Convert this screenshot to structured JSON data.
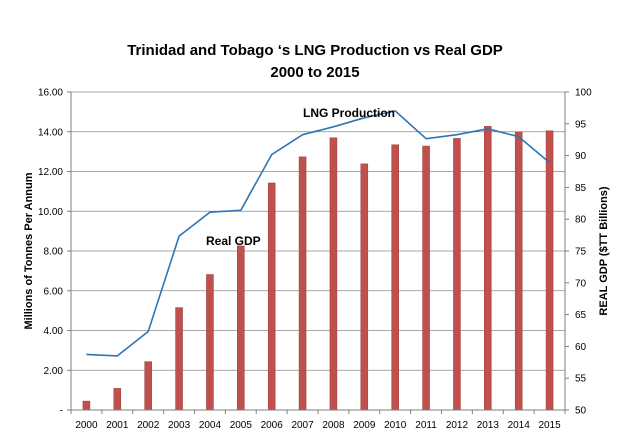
{
  "chart_data": {
    "type": "bar+line",
    "title_line1": "Trinidad and Tobago ‘s LNG Production vs Real GDP",
    "title_line2": "2000 to 2015",
    "categories": [
      "2000",
      "2001",
      "2002",
      "2003",
      "2004",
      "2005",
      "2006",
      "2007",
      "2008",
      "2009",
      "2010",
      "2011",
      "2012",
      "2013",
      "2014",
      "2015"
    ],
    "y_left": {
      "label": "Millions of Tonnes Per Annum",
      "ylim": [
        0,
        16
      ],
      "ticks": [
        0,
        2,
        4,
        6,
        8,
        10,
        12,
        14,
        16
      ],
      "tick_labels": [
        "-",
        "2.00",
        "4.00",
        "6.00",
        "8.00",
        "10.00",
        "12.00",
        "14.00",
        "16.00"
      ]
    },
    "y_right": {
      "label": "REAL GDP ($TT Billions)",
      "ylim": [
        50,
        100
      ],
      "ticks": [
        50,
        55,
        60,
        65,
        70,
        75,
        80,
        85,
        90,
        95,
        100
      ],
      "tick_labels": [
        "50",
        "55",
        "60",
        "65",
        "70",
        "75",
        "80",
        "85",
        "90",
        "95",
        "100"
      ]
    },
    "series": [
      {
        "name": "LNG Production",
        "kind": "line",
        "axis": "left",
        "color": "#2E75B6",
        "values": [
          2.8,
          2.72,
          3.95,
          8.75,
          9.95,
          10.05,
          12.85,
          13.85,
          14.25,
          14.7,
          15.05,
          13.65,
          13.85,
          14.15,
          13.75,
          12.45
        ]
      },
      {
        "name": "Real GDP",
        "kind": "bar",
        "axis": "right",
        "color": "#C0504D",
        "values": [
          51.4,
          53.4,
          57.6,
          66.1,
          71.3,
          75.8,
          85.7,
          89.8,
          92.8,
          88.7,
          91.7,
          91.5,
          92.7,
          94.6,
          93.7,
          93.9
        ]
      }
    ],
    "annotations": [
      {
        "text": "LNG Production",
        "series": "LNG Production"
      },
      {
        "text": "Real GDP",
        "series": "Real GDP"
      }
    ],
    "grid": true,
    "legend": "none"
  }
}
